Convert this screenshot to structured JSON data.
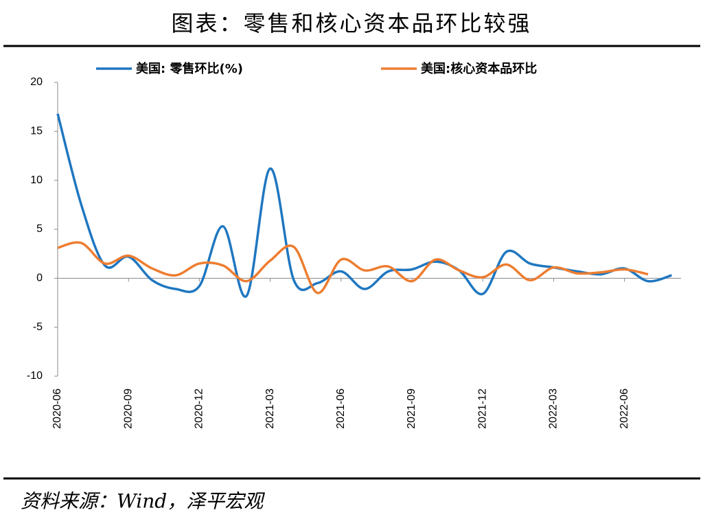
{
  "chart_data": {
    "type": "line",
    "title": "图表：零售和核心资本品环比较强",
    "source": "资料来源：Wind，泽平宏观",
    "categories": [
      "2020-06",
      null,
      null,
      "2020-09",
      null,
      null,
      "2020-12",
      null,
      null,
      "2021-03",
      null,
      null,
      "2021-06",
      null,
      null,
      "2021-09",
      null,
      null,
      "2021-12",
      null,
      null,
      "2022-03",
      null,
      null,
      "2022-06",
      null,
      null
    ],
    "series": [
      {
        "name": "美国: 零售环比(%)",
        "color": "#1f77c0",
        "values": [
          16.8,
          7.5,
          1.3,
          2.2,
          -0.2,
          -1.1,
          -0.8,
          5.3,
          -1.8,
          11.2,
          -0.2,
          -0.5,
          0.7,
          -1.1,
          0.7,
          0.9,
          1.7,
          0.8,
          -1.6,
          2.7,
          1.5,
          1.1,
          0.7,
          0.4,
          1.0,
          -0.3,
          0.3
        ]
      },
      {
        "name": "美国:核心资本品环比",
        "color": "#ed7d31",
        "values": [
          3.1,
          3.6,
          1.5,
          2.3,
          1.0,
          0.3,
          1.5,
          1.3,
          -0.3,
          1.8,
          3.2,
          -1.5,
          1.9,
          0.8,
          1.2,
          -0.3,
          1.9,
          0.8,
          0.1,
          1.4,
          -0.2,
          1.1,
          0.5,
          0.6,
          0.9,
          0.4,
          null
        ]
      }
    ],
    "ylim": [
      -10,
      20
    ],
    "yticks": [
      -10,
      -5,
      0,
      5,
      10,
      15,
      20
    ],
    "grid": false
  }
}
